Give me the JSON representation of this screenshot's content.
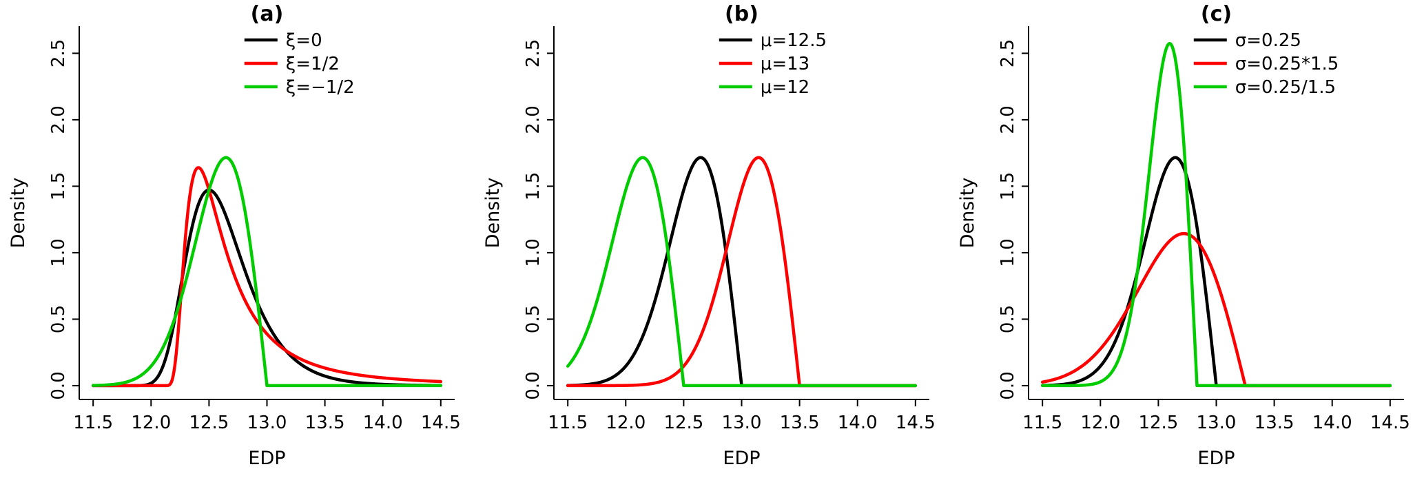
{
  "page": {
    "background": "#ffffff",
    "figure_description": "Three GEV density curve panels"
  },
  "colors": {
    "black": "#000000",
    "red": "#FF0000",
    "green": "#00CC00",
    "axis": "#000000"
  },
  "chart_data": [
    {
      "type": "line",
      "title": "(a)",
      "xlabel": "EDP",
      "ylabel": "Density",
      "distribution": "GEV",
      "xlim": [
        11.38,
        14.62
      ],
      "ylim": [
        -0.104,
        2.704
      ],
      "x_range": [
        11.5,
        14.5
      ],
      "xticks": [
        11.5,
        12.0,
        12.5,
        13.0,
        13.5,
        14.0,
        14.5
      ],
      "xtick_labels": [
        "11.5",
        "12.0",
        "12.5",
        "13.0",
        "13.5",
        "14.0",
        "14.5"
      ],
      "yticks": [
        0.0,
        0.5,
        1.0,
        1.5,
        2.0,
        2.5
      ],
      "ytick_labels": [
        "0.0",
        "0.5",
        "1.0",
        "1.5",
        "2.0",
        "2.5"
      ],
      "legend_position": "top-right",
      "grid": false,
      "series": [
        {
          "name": "ξ=0",
          "color": "#000000",
          "mu": 12.5,
          "sigma": 0.25,
          "xi": 0
        },
        {
          "name": "ξ=1/2",
          "color": "#FF0000",
          "mu": 12.5,
          "sigma": 0.25,
          "xi": 0.5
        },
        {
          "name": "ξ=−1/2",
          "color": "#00CC00",
          "mu": 12.5,
          "sigma": 0.25,
          "xi": -0.5
        }
      ]
    },
    {
      "type": "line",
      "title": "(b)",
      "xlabel": "EDP",
      "ylabel": "Density",
      "distribution": "GEV",
      "xlim": [
        11.38,
        14.62
      ],
      "ylim": [
        -0.104,
        2.704
      ],
      "x_range": [
        11.5,
        14.5
      ],
      "xticks": [
        11.5,
        12.0,
        12.5,
        13.0,
        13.5,
        14.0,
        14.5
      ],
      "xtick_labels": [
        "11.5",
        "12.0",
        "12.5",
        "13.0",
        "13.5",
        "14.0",
        "14.5"
      ],
      "yticks": [
        0.0,
        0.5,
        1.0,
        1.5,
        2.0,
        2.5
      ],
      "ytick_labels": [
        "0.0",
        "0.5",
        "1.0",
        "1.5",
        "2.0",
        "2.5"
      ],
      "legend_position": "top-right",
      "grid": false,
      "series": [
        {
          "name": "μ=12.5",
          "color": "#000000",
          "mu": 12.5,
          "sigma": 0.25,
          "xi": -0.5
        },
        {
          "name": "μ=13",
          "color": "#FF0000",
          "mu": 13.0,
          "sigma": 0.25,
          "xi": -0.5
        },
        {
          "name": "μ=12",
          "color": "#00CC00",
          "mu": 12.0,
          "sigma": 0.25,
          "xi": -0.5
        }
      ]
    },
    {
      "type": "line",
      "title": "(c)",
      "xlabel": "EDP",
      "ylabel": "Density",
      "distribution": "GEV",
      "xlim": [
        11.38,
        14.62
      ],
      "ylim": [
        -0.104,
        2.704
      ],
      "x_range": [
        11.5,
        14.5
      ],
      "xticks": [
        11.5,
        12.0,
        12.5,
        13.0,
        13.5,
        14.0,
        14.5
      ],
      "xtick_labels": [
        "11.5",
        "12.0",
        "12.5",
        "13.0",
        "13.5",
        "14.0",
        "14.5"
      ],
      "yticks": [
        0.0,
        0.5,
        1.0,
        1.5,
        2.0,
        2.5
      ],
      "ytick_labels": [
        "0.0",
        "0.5",
        "1.0",
        "1.5",
        "2.0",
        "2.5"
      ],
      "legend_position": "top-right",
      "grid": false,
      "series": [
        {
          "name": "σ=0.25",
          "color": "#000000",
          "mu": 12.5,
          "sigma": 0.25,
          "xi": -0.5
        },
        {
          "name": "σ=0.25*1.5",
          "color": "#FF0000",
          "mu": 12.5,
          "sigma": 0.375,
          "xi": -0.5
        },
        {
          "name": "σ=0.25/1.5",
          "color": "#00CC00",
          "mu": 12.5,
          "sigma": 0.1666667,
          "xi": -0.5
        }
      ]
    }
  ]
}
